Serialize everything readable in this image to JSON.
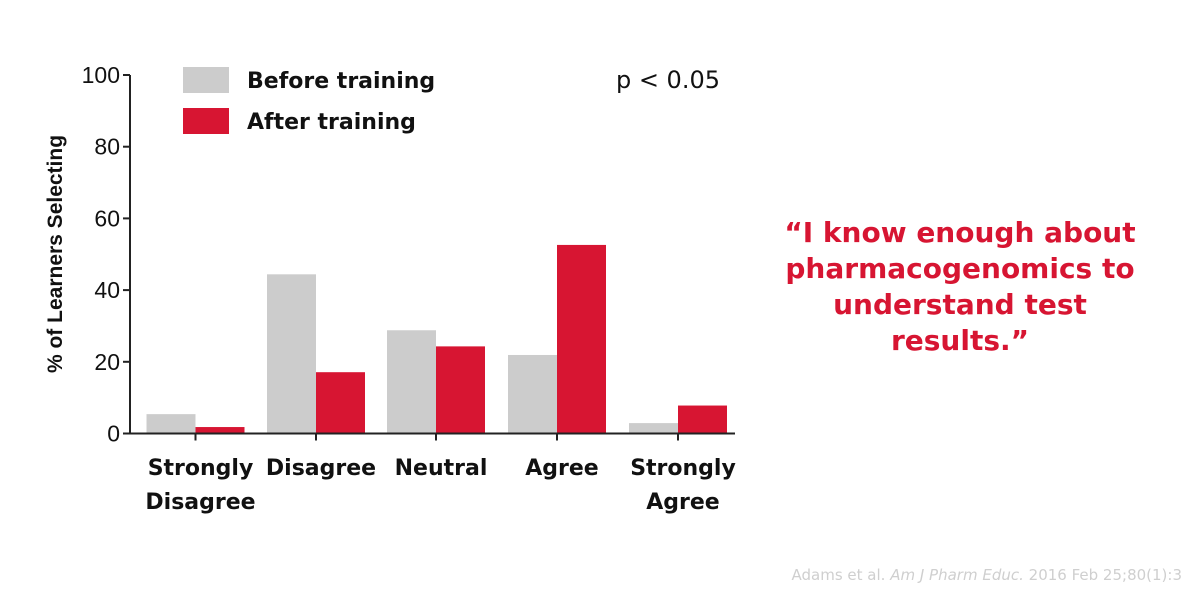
{
  "chart_data": {
    "type": "bar",
    "categories": [
      [
        "Strongly",
        "Disagree"
      ],
      [
        "Disagree"
      ],
      [
        "Neutral"
      ],
      [
        "Agree"
      ],
      [
        "Strongly",
        "Agree"
      ]
    ],
    "series": [
      {
        "name": "Before training",
        "color": "#cccccc",
        "values": [
          5.4,
          44.4,
          28.8,
          21.9,
          2.9
        ]
      },
      {
        "name": "After training",
        "color": "#d71532",
        "values": [
          1.8,
          17.1,
          24.3,
          52.6,
          7.8
        ]
      }
    ],
    "ylabel": "% of Learners Selecting",
    "xlabel": "",
    "ylim": [
      0,
      100
    ],
    "yticks": [
      0,
      20,
      40,
      60,
      80,
      100
    ],
    "legend": "top-left",
    "annotation": "p < 0.05",
    "grid": false
  },
  "quote": "“I know enough about pharmacogenomics to understand test results.”",
  "citation": {
    "authors": "Adams et al.",
    "journal": "Am J Pharm Educ.",
    "details": "2016 Feb 25;80(1):3"
  }
}
